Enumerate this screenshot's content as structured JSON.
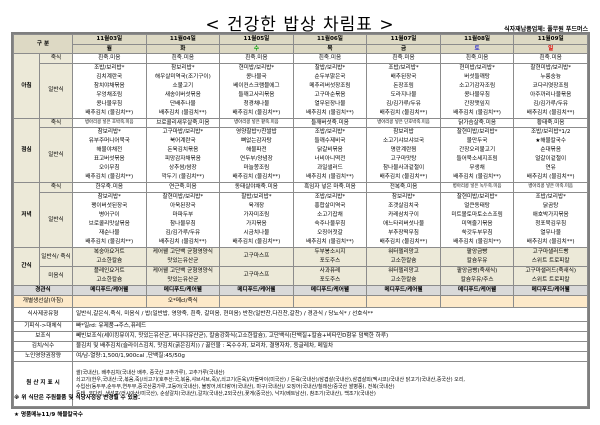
{
  "title": "< 건강한 밥상 차림표 >",
  "supplier": "식자재납품업체: 풀무원 푸드머스",
  "header": {
    "label": "구 분"
  },
  "colors": {
    "wed": "#00a000",
    "sat": "#3333cc",
    "sun": "#e00000",
    "header_bg": "#ddd9c4",
    "label_bg": "#ece9d8",
    "tube_bg": "#d9d9d9",
    "fish_bg": "#fde9c9"
  },
  "days": [
    {
      "date": "11월03일",
      "day": "월"
    },
    {
      "date": "11월04일",
      "day": "화"
    },
    {
      "date": "11월05일",
      "day": "수"
    },
    {
      "date": "11월06일",
      "day": "목"
    },
    {
      "date": "11월07일",
      "day": "금"
    },
    {
      "date": "11월08일",
      "day": "토"
    },
    {
      "date": "11월09일",
      "day": "일"
    }
  ],
  "meals": [
    {
      "name": "아침",
      "porridge_label": "죽식",
      "general_label": "일반식",
      "porridge": [
        "흰죽.미음",
        "흰죽.미음",
        "흰죽.미음",
        "흰죽.미음",
        "흰죽.미음",
        "흰죽.미음",
        "흰죽.미음"
      ],
      "general": [
        [
          "조밥/보리밥*",
          "김치계란국",
          "참치야채볶음",
          "우엉채조림",
          "콩나물무침",
          "배추김치 (물김치**)"
        ],
        [
          "참보리밥*",
          "해우살미역국(조기구이)",
          "소불고기",
          "새송이버섯볶음",
          "단배추나물",
          "배추김치 (물김치**)"
        ],
        [
          "현미밥/보리밥*",
          "콩나물국",
          "베이컨스크램블에그",
          "들깨고사리볶음",
          "청경채나물",
          "배추김치 (물김치**)"
        ],
        [
          "찰밥/보리밥*",
          "순두부맑은국",
          "메추리버섯장조림",
          "고구마순볶음",
          "열무된장나물",
          "배추김치 (물김치**)"
        ],
        [
          "조밥/보리밥*",
          "배추된장국",
          "돈장조림",
          "도라지나물",
          "김/김가루/두유",
          "배추김치 (물김치**)"
        ],
        [
          "현미밥/보리밥*",
          "버섯들깨탕",
          "소고기감자조림",
          "콩나물무침",
          "간장깻잎지",
          "배추김치 (물김치**)"
        ],
        [
          "찰현미밥/보리밥*",
          "누룽숭늉",
          "코다리엿장조림",
          "아주까리나물볶음",
          "김/김가루/두유",
          "배추김치 (물김치**)"
        ]
      ]
    },
    {
      "name": "점심",
      "porridge_label": "죽식",
      "general_label": "일반식",
      "porridge": [
        "병아리콩 넣은 호박죽.미음",
        "브로콜리새우살죽.미음",
        "병아리콩 넣은 팥죽.미음",
        "들깨버섯죽.미음",
        "병아리콩 넣은 단호박죽.미음",
        "닭가슴살죽.미음",
        "황태죽.미음"
      ],
      "general": [
        [
          "참보리밥*",
          "유부주머니어묵국",
          "해물야채전",
          "표고버섯볶음",
          "오이무침",
          "배추김치 (물김치**)"
        ],
        [
          "고구마밥/보리밥*",
          "북어계란국",
          "돈육김치볶음",
          "피망감자채볶음",
          "상추쌈/쌈장",
          "깍두기 (물김치**)"
        ],
        [
          "영양찰밥*/찬쌀밥",
          "뼈없는감자탕",
          "해물파전",
          "연두부/양념장",
          "마늘쫑조림",
          "배추김치 (물김치**)"
        ],
        [
          "조밥/보리밥*",
          "들깨수제비국",
          "닭갈비볶음",
          "너비아니떡전",
          "과일샐러드",
          "배추김치 (물김치**)"
        ],
        [
          "참보리밥",
          "소고기샤브샤브국",
          "명란계란찜",
          "고구마맛탕",
          "참나물사과겉절이",
          "배추김치 (물김치**)"
        ],
        [
          "찰현미밥/보리밥*",
          "물만두국",
          "간장오리불고기",
          "들어묵소세지조림",
          "무생채",
          "배추김치 (물김치**)"
        ],
        [
          "조밥/보리밥*1/2",
          "★해물칼국수",
          "순대볶음",
          "얼갈이겉절이",
          "연유",
          "배추김치 (물김치**)"
        ]
      ]
    },
    {
      "name": "저녁",
      "porridge_label": "죽식",
      "general_label": "일반식",
      "porridge": [
        "한우죽.미음",
        "연근죽.미음",
        "동태살야채죽.미음",
        "흑임자 넣은 마죽.미음",
        "전복죽.미음",
        "병아리콩 넣은 녹두죽.미음",
        "병아리콩 넣은 마죽.미음"
      ],
      "general": [
        [
          "참보리밥*",
          "팽이버섯된장국",
          "병어구이",
          "브로콜리맛살볶음",
          "재순나물",
          "배추김치 (물김치**)"
        ],
        [
          "찰현미밥/보리밥*",
          "아욱된장국",
          "마파두부",
          "참나물무침",
          "김/김가루/두유",
          "배추김치 (물김치**)"
        ],
        [
          "찰밥/보리밥*",
          "육개장",
          "가자미조림",
          "가지볶음",
          "시금치나물",
          "배추김치 (물김치**)"
        ],
        [
          "조밥/보리밥*",
          "홍합살미역국",
          "소고기잡채",
          "숙주나물무침",
          "오징어젓갈",
          "배추김치 (물김치**)"
        ],
        [
          "참보리밥*",
          "조갯살김치국",
          "카레삼치구이",
          "애느타리버섯나물",
          "부추장떡무침",
          "배추김치 (물김치**)"
        ],
        [
          "찰현미밥/보리밥*",
          "얼큰동태탕",
          "미트볼토마토소스조림",
          "미역줄기볶음",
          "쑥갓두부무침",
          "배추김치 (물김치**)"
        ],
        [
          "조밥/보리밥*",
          "닭곰탕",
          "애호박가지볶음",
          "청포묵김무침",
          "열무나물",
          "배추김치 (물김치**)"
        ]
      ]
    }
  ],
  "snack": {
    "name": "간식",
    "rows": [
      {
        "label": "일반식/ 죽식",
        "items": [
          [
            "복숭아요거트",
            "고소한칼슘"
          ],
          [
            "케어웰 고단백 균형영양식",
            "맛있는유산균"
          ],
          [
            "고구마스프"
          ],
          [
            "두부봉소시지",
            "포도주스"
          ],
          [
            "워터젤리망고",
            "고소한칼슘"
          ],
          [
            "팥앙금빵",
            "칼슘우유"
          ],
          [
            "고구마샐러드빵",
            "스위트 트로피칼"
          ]
        ]
      },
      {
        "label": "미음식",
        "items": [
          [
            "플레인요거트",
            "고소한칼슘"
          ],
          [
            "케어웰 고단백 균형영양식",
            "맛있는유산균"
          ],
          [
            "고구마스프"
          ],
          [
            "사과퓨레",
            "포도주스"
          ],
          [
            "워터젤리망고",
            "고소한칼슘"
          ],
          [
            "팥앙금빵(죽새식)",
            "칼슘우유/주스"
          ],
          [
            "고구마샐러드(죽새식)",
            "스위트 트로피칼"
          ]
        ]
      }
    ]
  },
  "tube": {
    "label": "경관식",
    "items": [
      "메디푸드/케어웰",
      "메디푸드/케어웰",
      "메디푸드/케어웰",
      "메디푸드/케어웰",
      "메디푸드/케어웰",
      "메디푸드/케어웰",
      "메디푸드/케어웰"
    ]
  },
  "fish": {
    "label": "개별생선살(아침)",
    "items": [
      "",
      "오*메cl/죽식",
      "",
      "",
      "",
      "",
      ""
    ]
  },
  "info": [
    {
      "label": "식사제공유형",
      "text": "일반식,갈은식,죽식, 미음식 / 밥(일반밥, 영양죽, 흰죽, 갈미음, 현미음) 반찬(일반찬,다진찬,갈찬) / 경관식 / 당뇨식* / 선호식**"
    },
    {
      "label": "기피식->대체식",
      "text": "빠*일rd: 유제품→주스,퓨레드"
    },
    {
      "label": "보조식",
      "text": "빼빈보조식(셰이킹뮤이지, 맛있는유산균, 바나나유산균), 칼슘강화식(고소한칼슘), 고단백식(단백질+칼슘+비타민D함유 덤백한 하루)"
    },
    {
      "label": "김치/식수",
      "text": "물김치 및 배추김치(슬라이스김치, 맛김치(굵은김치)) / 끓인물 : 옥수수차, 보리차, 결명자차, 둥글레차, 메밀차"
    },
    {
      "label": "노인영양권장량",
      "text": "여/남-열량:1,500/1,900cal ,단백질:45/50g"
    }
  ],
  "origin": {
    "label": "원 산 지 표 시",
    "lines": [
      "쌀(국내산), 배추김치(국내산 배추, 중국산 고추가루), 고추가루(국내산)",
      "쇠고기(한우,국내산:국,볶음,죽)/쇠고기(호주산:국,볶음,샤브샤브,죽)/,쇠고기(돈육)/차돌박이(미국산) / 돈육(국내산)/삼겹살(국내산),삼겹살외(멕시코)/국내산 닭고기(국내산,중국산) 오리,",
      "수입산(동두부,순두부,연두부,중국산콩가루,고등어(국내산), 불장어,비다랑어(국내산), 마구(국내산)/ 오징어(국내산/칠레산/중국산 쌀병풍), 전복(국내산)",
      "동태, 코다리, 생선포(러시아산/미국산), 순살갈치(국내산),갈치(국내산,2외국산),꽃게(중국산), 낙지(베트남산), 참조기(국내산), 백조기(국내산)"
    ]
  },
  "notes": [
    "※ 위 식단은 주원물품 및 식당사정상 변경될 수 있음.",
    "★ 명품메뉴11/9 해물칼국수"
  ]
}
